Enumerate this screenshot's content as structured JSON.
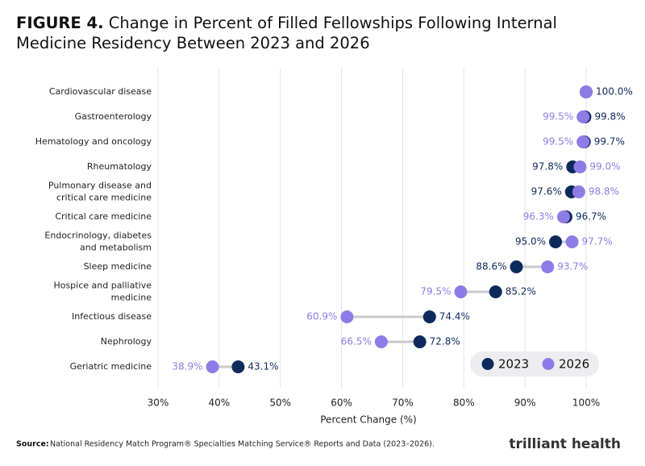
{
  "chart_data": {
    "type": "dumbbell",
    "title_prefix": "FIGURE 4.",
    "title": "Change in Percent of Filled Fellowships Following Internal Medicine Residency Between 2023 and 2026",
    "x_label": "Percent Change (%)",
    "source_label": "Source:",
    "source": "National Residency Match Program® Specialties Matching Service® Reports and Data (2023–2026).",
    "logo": "trilliant health",
    "categories": [
      "Cardiovascular disease",
      "Gastroenterology",
      "Hematology and oncology",
      "Rheumatology",
      "Pulmonary disease and critical care medicine",
      "Critical care medicine",
      "Endocrinology, diabetes and metabolism",
      "Sleep medicine",
      "Hospice and palliative medicine",
      "Infectious disease",
      "Nephrology",
      "Geriatric medicine"
    ],
    "series": [
      {
        "name": "2023",
        "color": "#0e2a5c",
        "values": [
          100.0,
          99.8,
          99.7,
          97.8,
          97.6,
          96.7,
          95.0,
          88.6,
          85.2,
          74.4,
          72.8,
          43.1
        ],
        "value_labels": [
          "100.0%",
          "99.8%",
          "99.7%",
          "97.8%",
          "97.6%",
          "96.7%",
          "95.0%",
          "88.6%",
          "85.2%",
          "74.4%",
          "72.8%",
          "43.1%"
        ]
      },
      {
        "name": "2026",
        "color": "#8e7ce6",
        "values": [
          100.0,
          99.5,
          99.5,
          99.0,
          98.8,
          96.3,
          97.7,
          93.7,
          79.5,
          60.9,
          66.5,
          38.9
        ],
        "value_labels": [
          null,
          "99.5%",
          "99.5%",
          "99.0%",
          "98.8%",
          "96.3%",
          "97.7%",
          "93.7%",
          "79.5%",
          "60.9%",
          "66.5%",
          "38.9%"
        ]
      }
    ],
    "xlim": [
      30,
      100
    ],
    "xticks": [
      {
        "value": 30,
        "label": "30%"
      },
      {
        "value": 40,
        "label": "40%"
      },
      {
        "value": 50,
        "label": "50%"
      },
      {
        "value": 60,
        "label": "60%"
      },
      {
        "value": 70,
        "label": "70%"
      },
      {
        "value": 80,
        "label": "80%"
      },
      {
        "value": 90,
        "label": "90%"
      },
      {
        "value": 100,
        "label": "100%"
      }
    ],
    "grid": true,
    "connector_color": "#c9c9cc"
  }
}
